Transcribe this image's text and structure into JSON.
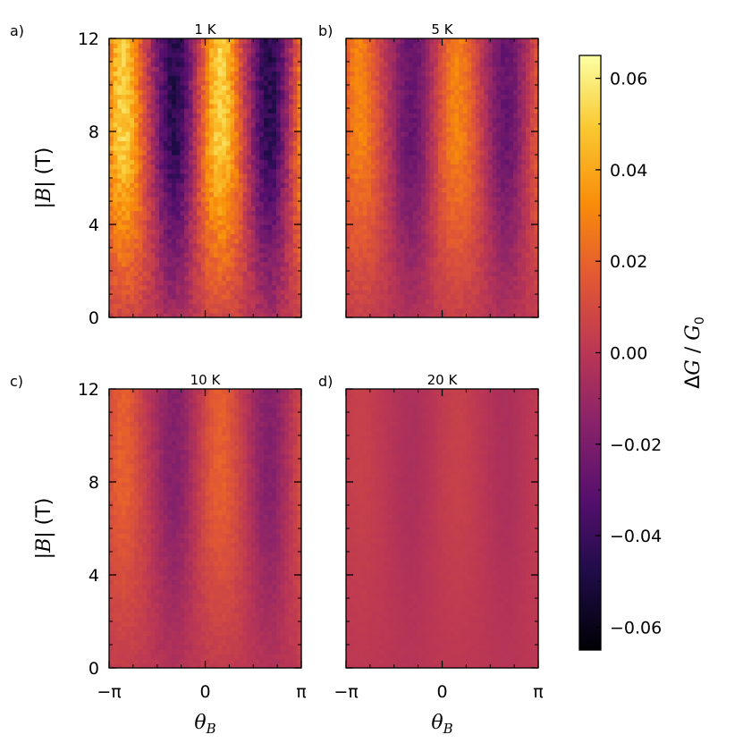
{
  "figure": {
    "colormap": "inferno",
    "colors": {
      "background": "#ffffff",
      "axis": "#000000"
    }
  },
  "chart_data": [
    {
      "type": "heatmap",
      "panel_tag": "a)",
      "title": "1 K",
      "xlabel": "",
      "ylabel": "|B| (T)",
      "xlim": [
        -3.1416,
        3.1416
      ],
      "ylim": [
        0,
        12
      ],
      "xticks": [
        -3.1416,
        0,
        3.1416
      ],
      "xtick_labels": [
        "",
        "",
        ""
      ],
      "yticks": [
        0,
        4,
        8,
        12
      ],
      "ytick_labels": [
        "0",
        "4",
        "8",
        "12"
      ],
      "grid": false,
      "bright_ridges_theta": [
        -2.7,
        0.5
      ],
      "dark_valleys_theta": [
        -1.0,
        2.1
      ],
      "max_amplitude": 0.06
    },
    {
      "type": "heatmap",
      "panel_tag": "b)",
      "title": "5 K",
      "xlabel": "",
      "ylabel": "",
      "xlim": [
        -3.1416,
        3.1416
      ],
      "ylim": [
        0,
        12
      ],
      "xticks": [
        -3.1416,
        0,
        3.1416
      ],
      "xtick_labels": [
        "",
        "",
        ""
      ],
      "yticks": [
        0,
        4,
        8,
        12
      ],
      "ytick_labels": [
        "",
        "",
        "",
        ""
      ],
      "grid": false,
      "bright_ridges_theta": [
        -2.7,
        0.5
      ],
      "dark_valleys_theta": [
        -1.0,
        2.1
      ],
      "max_amplitude": 0.035
    },
    {
      "type": "heatmap",
      "panel_tag": "c)",
      "title": "10 K",
      "xlabel": "θB",
      "ylabel": "|B| (T)",
      "xlim": [
        -3.1416,
        3.1416
      ],
      "ylim": [
        0,
        12
      ],
      "xticks": [
        -3.1416,
        0,
        3.1416
      ],
      "xtick_labels": [
        "−π",
        "0",
        "π"
      ],
      "yticks": [
        0,
        4,
        8,
        12
      ],
      "ytick_labels": [
        "0",
        "4",
        "8",
        "12"
      ],
      "grid": false,
      "bright_ridges_theta": [
        -2.7,
        0.5
      ],
      "dark_valleys_theta": [
        -1.0,
        2.1
      ],
      "max_amplitude": 0.022
    },
    {
      "type": "heatmap",
      "panel_tag": "d)",
      "title": "20 K",
      "xlabel": "θB",
      "ylabel": "",
      "xlim": [
        -3.1416,
        3.1416
      ],
      "ylim": [
        0,
        12
      ],
      "xticks": [
        -3.1416,
        0,
        3.1416
      ],
      "xtick_labels": [
        "−π",
        "0",
        "π"
      ],
      "yticks": [
        0,
        4,
        8,
        12
      ],
      "ytick_labels": [
        "",
        "",
        "",
        ""
      ],
      "grid": false,
      "bright_ridges_theta": [
        -2.7,
        0.5
      ],
      "dark_valleys_theta": [
        -1.0,
        2.1
      ],
      "max_amplitude": 0.006
    }
  ],
  "colorbar": {
    "label": "ΔG / G0",
    "vmin": -0.065,
    "vmax": 0.065,
    "ticks": [
      0.06,
      0.04,
      0.02,
      0.0,
      -0.02,
      -0.04,
      -0.06
    ],
    "tick_labels": [
      "0.06",
      "0.04",
      "0.02",
      "0.00",
      "−0.02",
      "−0.04",
      "−0.06"
    ]
  }
}
